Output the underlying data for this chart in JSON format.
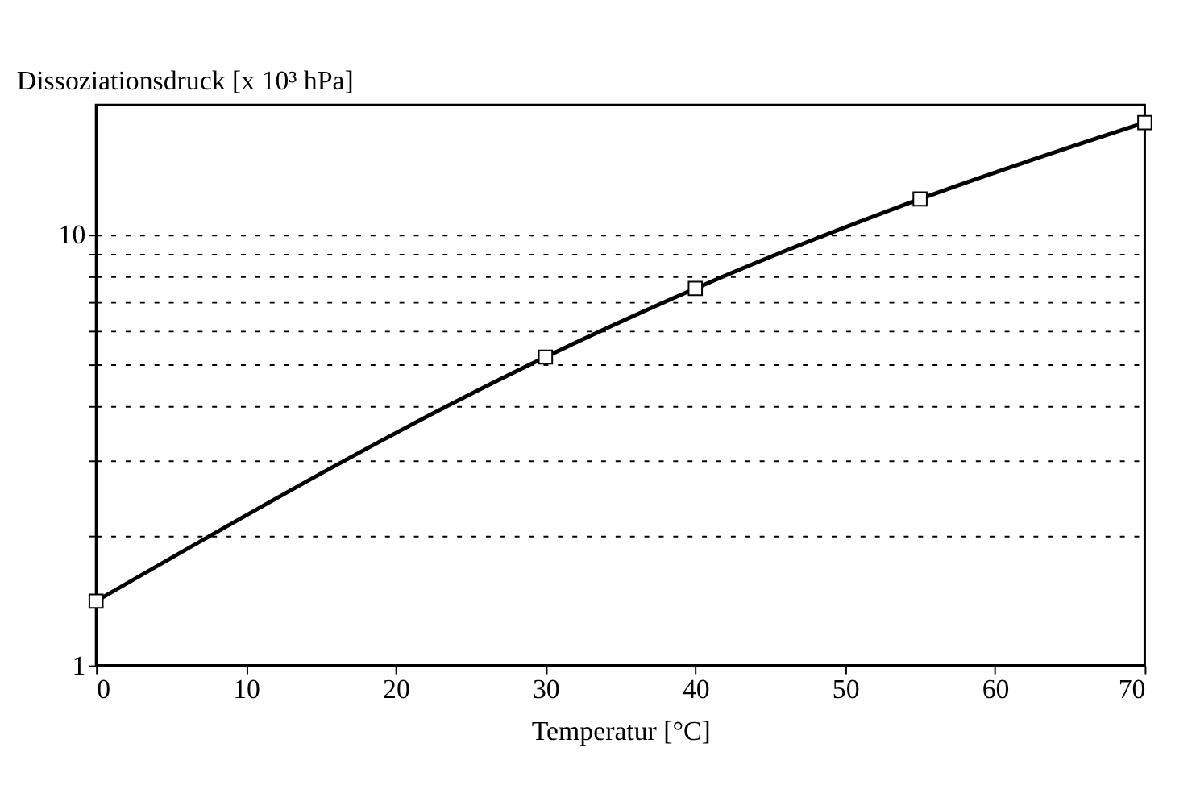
{
  "chart_data": {
    "type": "line",
    "xlabel": "Temperatur [°C]",
    "ylabel": "Dissoziationsdruck [x 10³ hPa]",
    "x": [
      0,
      30,
      40,
      55,
      70
    ],
    "series": [
      {
        "color": "#000000",
        "values": [
          1.41,
          5.2,
          7.5,
          12.1,
          18.2
        ]
      }
    ],
    "xlim": [
      0,
      70
    ],
    "xticks": [
      0,
      10,
      20,
      30,
      40,
      50,
      60,
      70
    ],
    "ylim": [
      1,
      20
    ],
    "yticks": [
      1,
      {
        "value": 2,
        "label": null
      },
      {
        "value": 3,
        "label": null
      },
      {
        "value": 4,
        "label": null
      },
      {
        "value": 5,
        "label": null
      },
      {
        "value": 6,
        "label": null
      },
      {
        "value": 7,
        "label": null
      },
      {
        "value": 8,
        "label": null
      },
      {
        "value": 9,
        "label": null
      },
      10
    ],
    "log": "y",
    "grid": "y",
    "marker": "square",
    "line_style": "solid"
  }
}
